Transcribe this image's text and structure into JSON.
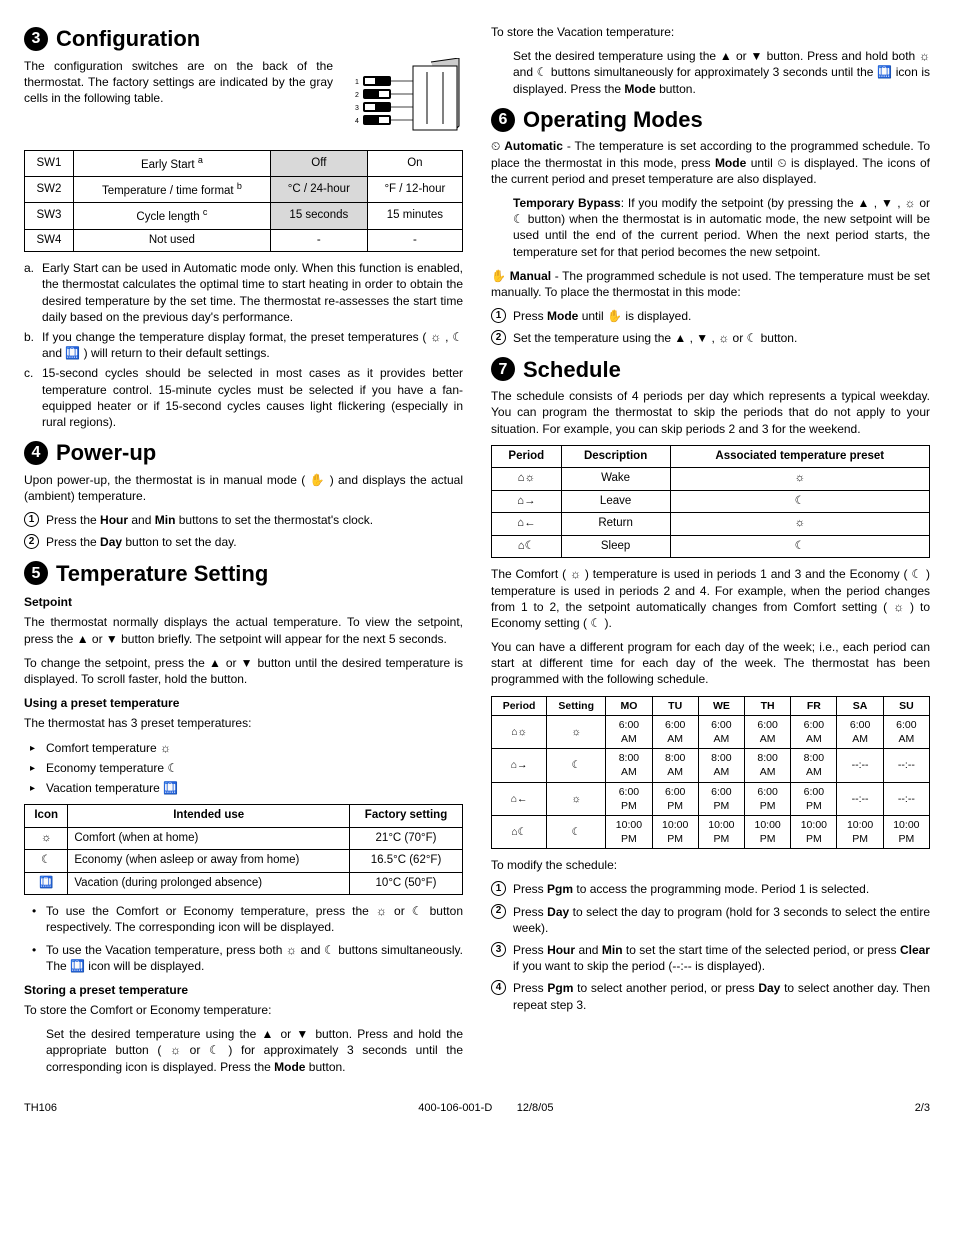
{
  "icons": {
    "sun": "☼",
    "moon": "☾",
    "suitcase": "🛄",
    "hand": "✋",
    "clock": "⏲",
    "up": "▲",
    "down": "▼",
    "houseWake": "⌂☼",
    "houseLeave": "⌂→",
    "houseReturn": "⌂←",
    "houseSleep": "⌂☾"
  },
  "sec3": {
    "num": "3",
    "title": "Configuration",
    "intro": "The configuration switches are on the back of the thermostat. The factory settings are indicated by the gray cells in the following table.",
    "table": {
      "headers": [
        "",
        "",
        "Off",
        "On"
      ],
      "rows": [
        {
          "c1": "SW1",
          "c2": "Early Start",
          "sup": "a",
          "off": "Off",
          "on": "On",
          "grayCol": "off"
        },
        {
          "c1": "SW2",
          "c2": "Temperature / time format",
          "sup": "b",
          "off": "°C / 24-hour",
          "on": "°F / 12-hour",
          "grayCol": "off"
        },
        {
          "c1": "SW3",
          "c2": "Cycle length",
          "sup": "c",
          "off": "15 seconds",
          "on": "15 minutes",
          "grayCol": "off"
        },
        {
          "c1": "SW4",
          "c2": "Not used",
          "sup": "",
          "off": "-",
          "on": "-",
          "grayCol": ""
        }
      ]
    },
    "notes": [
      {
        "tag": "a.",
        "text": "Early Start can be used in Automatic mode only. When this function is enabled, the thermostat calculates the optimal time to start heating in order to obtain the desired temperature by the set time. The thermostat re-assesses the start time daily based on the previous day's performance."
      },
      {
        "tag": "b.",
        "text": "If you change the temperature display format, the preset temperatures ( ☼ , ☾ and 🛄 ) will return to their default settings."
      },
      {
        "tag": "c.",
        "text": "15-second cycles should be selected in most cases as it provides better temperature control. 15-minute cycles must be selected if you have a fan-equipped heater or if 15-second cycles causes light flickering (especially in rural regions)."
      }
    ]
  },
  "sec4": {
    "num": "4",
    "title": "Power-up",
    "intro": "Upon power-up, the thermostat is in manual mode ( ✋ ) and displays the actual (ambient) temperature.",
    "steps": [
      "Press the <b>Hour</b> and <b>Min</b> buttons to set the thermostat's clock.",
      "Press the <b>Day</b> button to set the day."
    ]
  },
  "sec5": {
    "num": "5",
    "title": "Temperature Setting",
    "sub1": "Setpoint",
    "p1": "The thermostat normally displays the actual temperature. To view the setpoint, press the ▲ or ▼ button briefly. The setpoint will appear for the next 5 seconds.",
    "p2": "To change the setpoint, press the ▲ or ▼ button until the desired temperature is displayed. To scroll faster, hold the button.",
    "sub2": "Using a preset temperature",
    "p3": "The thermostat has 3 preset temperatures:",
    "presets": [
      "Comfort temperature ☼",
      "Economy temperature ☾",
      "Vacation temperature 🛄"
    ],
    "presetTable": {
      "headers": [
        "Icon",
        "Intended use",
        "Factory setting"
      ],
      "rows": [
        {
          "icon": "☼",
          "use": "Comfort (when at home)",
          "factory": "21°C (70°F)"
        },
        {
          "icon": "☾",
          "use": "Economy (when asleep or away from home)",
          "factory": "16.5°C (62°F)"
        },
        {
          "icon": "🛄",
          "use": "Vacation (during prolonged absence)",
          "factory": "10°C (50°F)"
        }
      ]
    },
    "useNotes": [
      "To use the Comfort or Economy temperature, press the ☼ or ☾ button respectively. The corresponding icon will be displayed.",
      "To use the Vacation temperature, press both ☼ and ☾ buttons simultaneously. The 🛄 icon will be displayed."
    ],
    "sub3": "Storing a preset temperature",
    "p4": "To store the Comfort or Economy temperature:",
    "store1": "Set the desired temperature using the ▲ or ▼ button. Press and hold the appropriate button ( ☼ or ☾ ) for approximately 3 seconds until the corresponding icon is displayed. Press the <b>Mode</b> button.",
    "p5": "To store the Vacation temperature:",
    "store2": "Set the desired temperature using the ▲ or ▼ button. Press and hold both ☼ and ☾ buttons simultaneously for approximately 3 seconds until the 🛄 icon is displayed. Press the <b>Mode</b> button."
  },
  "sec6": {
    "num": "6",
    "title": "Operating Modes",
    "autoLabel": "Automatic",
    "autoText": " - The temperature is set according to the programmed schedule. To place the thermostat in this mode, press <b>Mode</b> until ⏲ is displayed. The icons of the current period and preset temperature are also displayed.",
    "bypassLabel": "Temporary Bypass",
    "bypassText": ": If you modify the setpoint (by pressing the ▲ , ▼ , ☼ or ☾ button) when the thermostat is in automatic mode, the new setpoint will be used until the end of the current period. When the next period starts, the temperature set for that period becomes the new setpoint.",
    "manualLabel": "Manual",
    "manualText": " - The programmed schedule is not used. The temperature must be set manually. To place the thermostat in this mode:",
    "manualSteps": [
      "Press <b>Mode</b> until ✋ is displayed.",
      "Set the temperature using the ▲ , ▼ , ☼ or ☾ button."
    ]
  },
  "sec7": {
    "num": "7",
    "title": "Schedule",
    "intro": "The schedule consists of 4 periods per day which represents a typical weekday. You can program the thermostat to skip the periods that do not apply to your situation. For example, you can skip periods 2 and 3 for the weekend.",
    "periodTable": {
      "headers": [
        "Period",
        "Description",
        "Associated temperature preset"
      ],
      "rows": [
        {
          "icon": "⌂☼",
          "desc": "Wake",
          "preset": "☼"
        },
        {
          "icon": "⌂→",
          "desc": "Leave",
          "preset": "☾"
        },
        {
          "icon": "⌂←",
          "desc": "Return",
          "preset": "☼"
        },
        {
          "icon": "⌂☾",
          "desc": "Sleep",
          "preset": "☾"
        }
      ]
    },
    "p2": "The Comfort ( ☼ ) temperature is used in periods 1 and 3 and the Economy ( ☾ ) temperature is used in periods 2 and 4. For example, when the period changes from 1 to 2, the setpoint automatically changes from Comfort setting ( ☼ ) to Economy setting ( ☾ ).",
    "p3": "You can have a different program for each day of the week; i.e., each period can start at different time for each day of the week. The thermostat has been programmed with the following schedule.",
    "schedTable": {
      "headers": [
        "Period",
        "Setting",
        "MO",
        "TU",
        "WE",
        "TH",
        "FR",
        "SA",
        "SU"
      ],
      "rows": [
        {
          "p": "⌂☼",
          "s": "☼",
          "d": [
            "6:00 AM",
            "6:00 AM",
            "6:00 AM",
            "6:00 AM",
            "6:00 AM",
            "6:00 AM",
            "6:00 AM"
          ]
        },
        {
          "p": "⌂→",
          "s": "☾",
          "d": [
            "8:00 AM",
            "8:00 AM",
            "8:00 AM",
            "8:00 AM",
            "8:00 AM",
            "--:--",
            "--:--"
          ]
        },
        {
          "p": "⌂←",
          "s": "☼",
          "d": [
            "6:00 PM",
            "6:00 PM",
            "6:00 PM",
            "6:00 PM",
            "6:00 PM",
            "--:--",
            "--:--"
          ]
        },
        {
          "p": "⌂☾",
          "s": "☾",
          "d": [
            "10:00 PM",
            "10:00 PM",
            "10:00 PM",
            "10:00 PM",
            "10:00 PM",
            "10:00 PM",
            "10:00 PM"
          ]
        }
      ]
    },
    "p4": "To modify the schedule:",
    "modSteps": [
      "Press <b>Pgm</b> to access the programming mode. Period 1 is selected.",
      "Press <b>Day</b> to select the day to program (hold for 3 seconds to select the entire week).",
      "Press <b>Hour</b> and <b>Min</b> to set the start time of the selected period, or press <b>Clear</b> if you want to skip the period (--:-- is displayed).",
      "Press <b>Pgm</b> to select another period, or press <b>Day</b> to select another day. Then repeat step 3."
    ]
  },
  "footer": {
    "left": "TH106",
    "mid": "400-106-001-D",
    "date": "12/8/05",
    "page": "2/3"
  }
}
